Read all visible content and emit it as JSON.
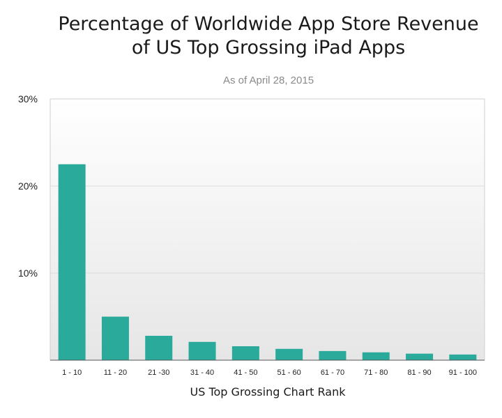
{
  "chart_data": {
    "type": "bar",
    "title_lines": [
      "Percentage of Worldwide App Store Revenue",
      "of US Top Grossing iPad Apps"
    ],
    "subtitle": "As of April 28, 2015",
    "xlabel": "US Top Grossing Chart Rank",
    "ylabel": "",
    "categories": [
      "1 - 10",
      "11 - 20",
      "21 -30",
      "31 - 40",
      "41 - 50",
      "51 - 60",
      "61 - 70",
      "71 - 80",
      "81 - 90",
      "91 - 100"
    ],
    "values": [
      22.5,
      5.0,
      2.8,
      2.1,
      1.6,
      1.3,
      1.05,
      0.9,
      0.75,
      0.65
    ],
    "ylim": [
      0,
      30
    ],
    "yticks": [
      10,
      20,
      30
    ],
    "ytick_labels": [
      "10%",
      "20%",
      "30%"
    ],
    "grid": true,
    "bar_color": "#2aaa9a",
    "plot_background_top": "#ffffff",
    "plot_background_bottom": "#e6e6e6",
    "legend": "none"
  }
}
